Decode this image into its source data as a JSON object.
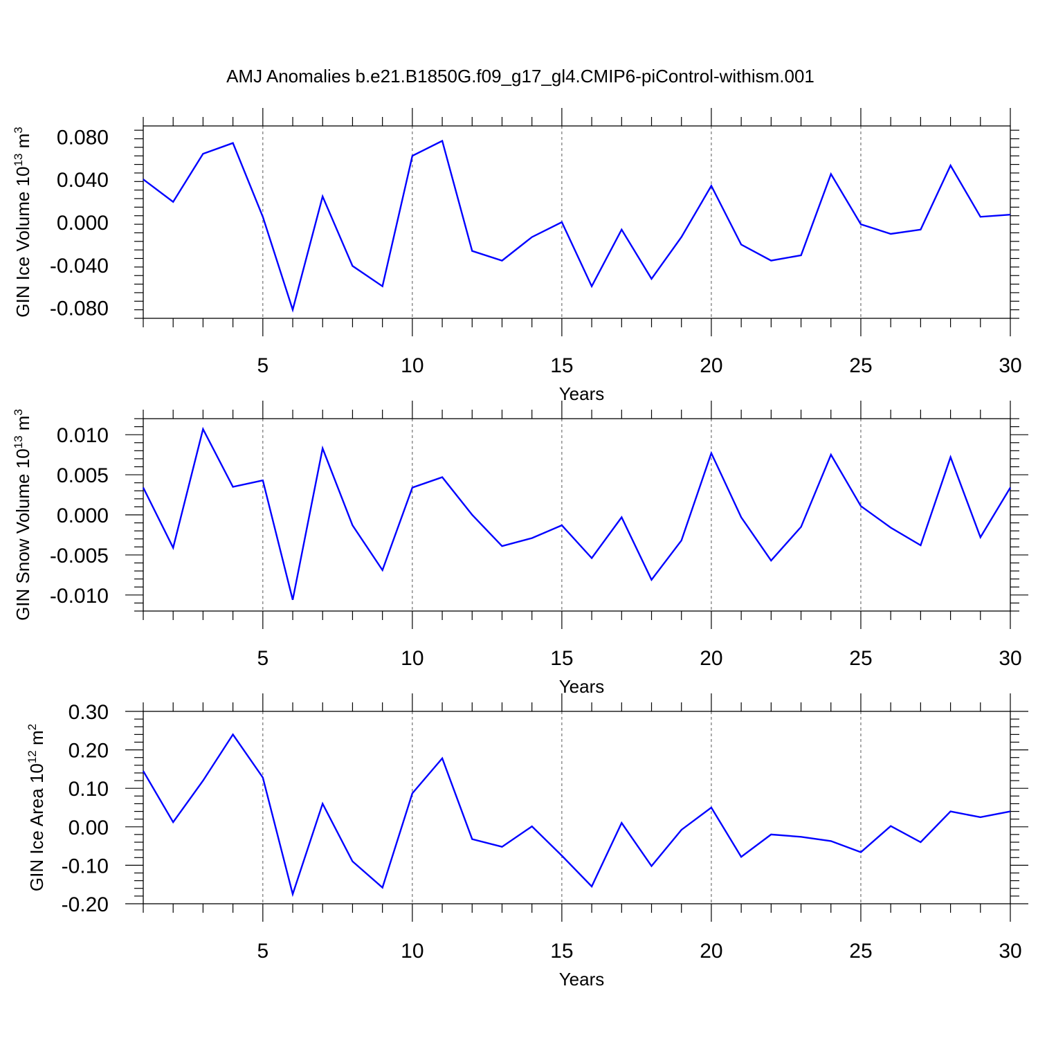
{
  "figure_title": "AMJ Anomalies b.e21.B1850G.f09_g17_gl4.CMIP6-piControl-withism.001",
  "colors": {
    "line": "#0000ff",
    "axes": "#000000",
    "grid": "#555555"
  },
  "chart_data": [
    {
      "type": "line",
      "ylabel": {
        "main": "GIN Ice Volume 10",
        "exp": "13",
        "unit": " m",
        "unit_exp": "3"
      },
      "xlabel": "Years",
      "xlim": [
        1,
        30
      ],
      "ylim": [
        -0.09,
        0.09
      ],
      "xticks": [
        5,
        10,
        15,
        20,
        25,
        30
      ],
      "yticks": [
        -0.08,
        -0.04,
        0.0,
        0.04,
        0.08
      ],
      "ytick_labels": [
        "-0.080",
        "-0.040",
        "0.000",
        "0.040",
        "0.080"
      ],
      "grid": "dashed vertical at major x ticks",
      "series": [
        {
          "x": [
            1,
            2,
            3,
            4,
            5,
            6,
            7,
            8,
            9,
            10,
            11,
            12,
            13,
            14,
            15,
            16,
            17,
            18,
            19,
            20,
            21,
            22,
            23,
            24,
            25,
            26,
            27,
            28,
            29,
            30
          ],
          "values": [
            0.04,
            0.019,
            0.064,
            0.074,
            0.005,
            -0.082,
            0.024,
            -0.041,
            -0.06,
            0.062,
            0.076,
            -0.027,
            -0.036,
            -0.014,
            0.0,
            -0.06,
            -0.007,
            -0.053,
            -0.014,
            0.034,
            -0.021,
            -0.036,
            -0.031,
            0.045,
            -0.002,
            -0.011,
            -0.007,
            0.053,
            0.005,
            0.007
          ]
        }
      ]
    },
    {
      "type": "line",
      "ylabel": {
        "main": "GIN Snow Volume 10",
        "exp": "13",
        "unit": " m",
        "unit_exp": "3"
      },
      "xlabel": "Years",
      "xlim": [
        1,
        30
      ],
      "ylim": [
        -0.012,
        0.012
      ],
      "xticks": [
        5,
        10,
        15,
        20,
        25,
        30
      ],
      "yticks": [
        -0.01,
        -0.005,
        0.0,
        0.005,
        0.01
      ],
      "ytick_labels": [
        "-0.010",
        "-0.005",
        "0.000",
        "0.005",
        "0.010"
      ],
      "grid": "dashed vertical at major x ticks",
      "series": [
        {
          "x": [
            1,
            2,
            3,
            4,
            5,
            6,
            7,
            8,
            9,
            10,
            11,
            12,
            13,
            14,
            15,
            16,
            17,
            18,
            19,
            20,
            21,
            22,
            23,
            24,
            25,
            26,
            27,
            28,
            29,
            30
          ],
          "values": [
            0.0034,
            -0.0041,
            0.0107,
            0.0035,
            0.0043,
            -0.0106,
            0.0083,
            -0.0013,
            -0.0069,
            0.0034,
            0.0047,
            0.0,
            -0.0039,
            -0.0029,
            -0.0013,
            -0.0054,
            -0.0003,
            -0.0081,
            -0.0032,
            0.0077,
            -0.0003,
            -0.0057,
            -0.0015,
            0.0075,
            0.0011,
            -0.0016,
            -0.0038,
            0.0072,
            -0.0028,
            0.0034
          ]
        }
      ]
    },
    {
      "type": "line",
      "ylabel": {
        "main": "GIN Ice Area 10",
        "exp": "12",
        "unit": " m",
        "unit_exp": "2"
      },
      "xlabel": "Years",
      "xlim": [
        1,
        30
      ],
      "ylim": [
        -0.2,
        0.3
      ],
      "xticks": [
        5,
        10,
        15,
        20,
        25,
        30
      ],
      "yticks": [
        -0.2,
        -0.1,
        0.0,
        0.1,
        0.2,
        0.3
      ],
      "ytick_labels": [
        "-0.20",
        "-0.10",
        "0.00",
        "0.10",
        "0.20",
        "0.30"
      ],
      "grid": "dashed vertical at major x ticks",
      "series": [
        {
          "x": [
            1,
            2,
            3,
            4,
            5,
            6,
            7,
            8,
            9,
            10,
            11,
            12,
            13,
            14,
            15,
            16,
            17,
            18,
            19,
            20,
            21,
            22,
            23,
            24,
            25,
            26,
            27,
            28,
            29,
            30
          ],
          "values": [
            0.145,
            0.012,
            0.12,
            0.24,
            0.128,
            -0.175,
            0.06,
            -0.09,
            -0.158,
            0.087,
            0.178,
            -0.032,
            -0.052,
            0.001,
            -0.075,
            -0.155,
            0.01,
            -0.102,
            -0.008,
            0.05,
            -0.078,
            -0.02,
            -0.026,
            -0.037,
            -0.066,
            0.002,
            -0.04,
            0.04,
            0.025,
            0.04
          ]
        }
      ]
    }
  ]
}
